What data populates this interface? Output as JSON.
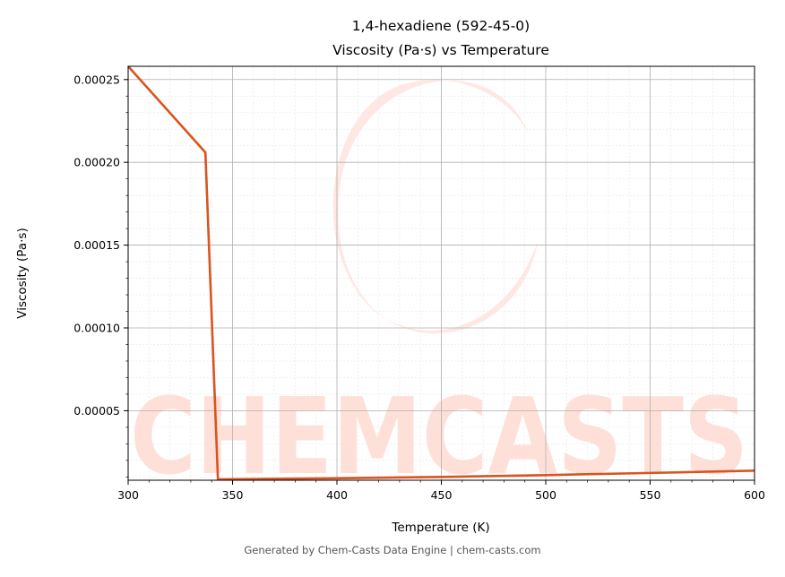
{
  "chart_data": {
    "type": "line",
    "title": "1,4-hexadiene (592-45-0)",
    "subtitle": "Viscosity (Pa·s) vs Temperature",
    "xlabel": "Temperature (K)",
    "ylabel": "Viscosity (Pa·s)",
    "xlim": [
      300,
      600
    ],
    "ylim": [
      8e-06,
      0.000258
    ],
    "x_ticks": [
      300,
      350,
      400,
      450,
      500,
      550,
      600
    ],
    "x_tick_labels": [
      "300",
      "350",
      "400",
      "450",
      "500",
      "550",
      "600"
    ],
    "y_ticks": [
      5e-05,
      0.0001,
      0.00015,
      0.0002,
      0.00025
    ],
    "y_tick_labels": [
      "0.00005",
      "0.00010",
      "0.00015",
      "0.00020",
      "0.00025"
    ],
    "grid": true,
    "line_color": "#d9541e",
    "series": [
      {
        "x": [
          300,
          337,
          343,
          400,
          450,
          500,
          550,
          600
        ],
        "y": [
          0.000258,
          0.000206,
          8.5e-06,
          9.2e-06,
          1e-05,
          1.11e-05,
          1.24e-05,
          1.38e-05
        ]
      }
    ]
  },
  "watermark": {
    "text": "CHEMCASTS",
    "color": "#ffd6cc"
  },
  "footer": "Generated by Chem-Casts Data Engine | chem-casts.com"
}
